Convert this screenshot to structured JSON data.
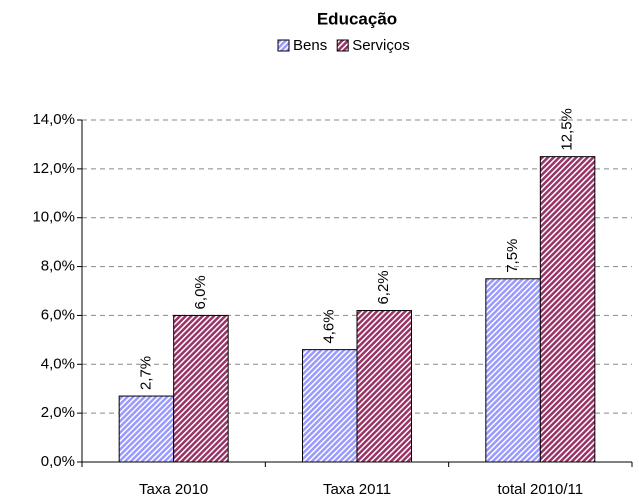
{
  "chart_data": {
    "type": "bar",
    "title": "Educação",
    "categories": [
      "Taxa 2010",
      "Taxa 2011",
      "total 2010/11"
    ],
    "series": [
      {
        "name": "Bens",
        "color": "#9999ff",
        "values": [
          2.7,
          4.6,
          7.5
        ],
        "value_labels": [
          "2,7%",
          "4,6%",
          "7,5%"
        ]
      },
      {
        "name": "Serviços",
        "color": "#993366",
        "values": [
          6.0,
          6.2,
          12.5
        ],
        "value_labels": [
          "6,0%",
          "6,2%",
          "12,5%"
        ]
      }
    ],
    "ylim": [
      0,
      14
    ],
    "yticks": [
      {
        "value": 0,
        "label": "0,0%"
      },
      {
        "value": 2,
        "label": "2,0%"
      },
      {
        "value": 4,
        "label": "4,0%"
      },
      {
        "value": 6,
        "label": "6,0%"
      },
      {
        "value": 8,
        "label": "8,0%"
      },
      {
        "value": 10,
        "label": "10,0%"
      },
      {
        "value": 12,
        "label": "12,0%"
      },
      {
        "value": 14,
        "label": "14,0%"
      }
    ],
    "grid": true,
    "legend": "top"
  }
}
